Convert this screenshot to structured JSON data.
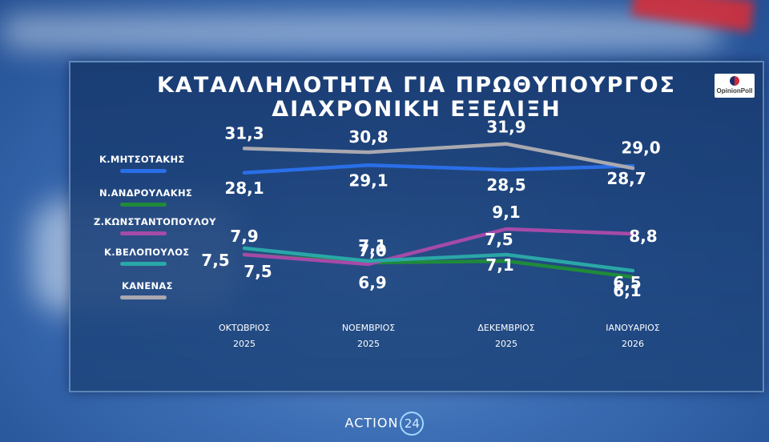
{
  "header": {
    "title_line1": "ΚΑΤΑΛΛΗΛΟΤΗΤΑ ΓΙΑ ΠΡΩΘΥΠΟΥΡΓΟΣ",
    "title_line2": "ΔΙΑΧΡΟΝΙΚΗ ΕΞΕΛΙΞΗ",
    "logo_text": "OpinionPoll"
  },
  "footer": {
    "brand_text": "ACTION",
    "brand_number": "24"
  },
  "chart_data": {
    "type": "line",
    "title": "ΚΑΤΑΛΛΗΛΟΤΗΤΑ ΓΙΑ ΠΡΩΘΥΠΟΥΡΓΟΣ ΔΙΑΧΡΟΝΙΚΗ ΕΞΕΛΙΞΗ",
    "categories": [
      {
        "month": "ΟΚΤΩΒΡΙΟΣ",
        "year": "2025"
      },
      {
        "month": "ΝΟΕΜΒΡΙΟΣ",
        "year": "2025"
      },
      {
        "month": "ΔΕΚΕΜΒΡΙΟΣ",
        "year": "2025"
      },
      {
        "month": "ΙΑΝΟΥΑΡΙΟΣ",
        "year": "2026"
      }
    ],
    "legend_placement": "left",
    "grid": false,
    "series": [
      {
        "name": "Κ.ΜΗΤΣΟΤΑΚΗΣ",
        "color": "#2a6fe8",
        "values": [
          28.1,
          29.1,
          28.5,
          29.0
        ],
        "labels": [
          "28,1",
          "29,1",
          "28,5",
          "29,0"
        ]
      },
      {
        "name": "Ν.ΑΝΔΡΟΥΛΑΚΗΣ",
        "color": "#1f8a3a",
        "values": [
          7.5,
          7.0,
          7.1,
          6.1
        ],
        "labels": [
          "7,5",
          "7,0",
          "7,1",
          "6,1"
        ]
      },
      {
        "name": "Ζ.ΚΩΝΣΤΑΝΤΟΠΟΥΛΟΥ",
        "color": "#a64aa8",
        "values": [
          7.5,
          6.9,
          9.1,
          8.8
        ],
        "labels": [
          "7,5",
          "6,9",
          "9,1",
          "8,8"
        ]
      },
      {
        "name": "Κ.ΒΕΛΟΠΟΥΛΟΣ",
        "color": "#2aa7a7",
        "values": [
          7.9,
          7.1,
          7.5,
          6.5
        ],
        "labels": [
          "7,9",
          "7,1",
          "7,5",
          "6,5"
        ]
      },
      {
        "name": "ΚΑΝΕΝΑΣ",
        "color": "#a9a9b0",
        "values": [
          31.3,
          30.8,
          31.9,
          28.7
        ],
        "labels": [
          "31,3",
          "30,8",
          "31,9",
          "28,7"
        ]
      }
    ]
  }
}
